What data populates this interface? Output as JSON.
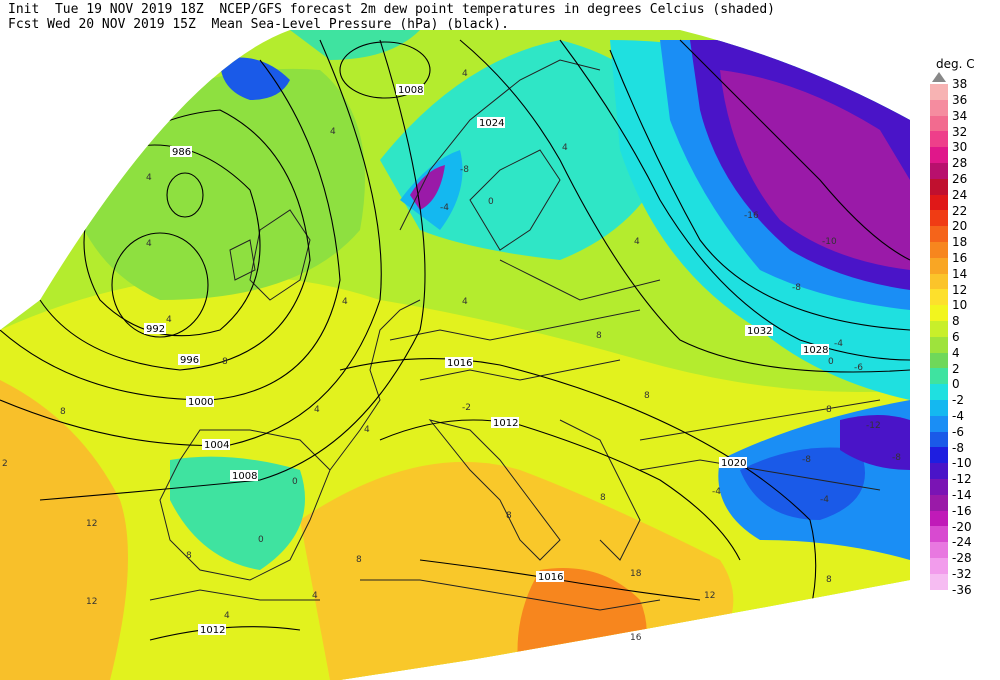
{
  "header": {
    "line1": "Init  Tue 19 NOV 2019 18Z  NCEP/GFS forecast 2m dew point temperatures in degrees Celcius (shaded)",
    "line2": "Fcst Wed 20 NOV 2019 15Z  Mean Sea-Level Pressure (hPa) (black)."
  },
  "legend": {
    "title": "deg. C",
    "top_label": "38",
    "levels": [
      {
        "label": "36",
        "color": "#f7b3b3"
      },
      {
        "label": "34",
        "color": "#f58c9f"
      },
      {
        "label": "32",
        "color": "#f26b8f"
      },
      {
        "label": "30",
        "color": "#ee3f8a"
      },
      {
        "label": "28",
        "color": "#e0178a"
      },
      {
        "label": "26",
        "color": "#b8106d"
      },
      {
        "label": "24",
        "color": "#c0102f"
      },
      {
        "label": "22",
        "color": "#e01818"
      },
      {
        "label": "20",
        "color": "#f03c14"
      },
      {
        "label": "18",
        "color": "#f5641a"
      },
      {
        "label": "16",
        "color": "#f7861e"
      },
      {
        "label": "14",
        "color": "#f9a624"
      },
      {
        "label": "12",
        "color": "#fbc42a"
      },
      {
        "label": "10",
        "color": "#fde02c"
      },
      {
        "label": "8",
        "color": "#f2f51e"
      },
      {
        "label": "6",
        "color": "#c8ef2a"
      },
      {
        "label": "4",
        "color": "#9ee33c"
      },
      {
        "label": "2",
        "color": "#6fd85a"
      },
      {
        "label": "0",
        "color": "#3fe3a0"
      },
      {
        "label": "-2",
        "color": "#1fe0e0"
      },
      {
        "label": "-4",
        "color": "#14b8f0"
      },
      {
        "label": "-6",
        "color": "#1a8ef5"
      },
      {
        "label": "-8",
        "color": "#1a5ae8"
      },
      {
        "label": "-10",
        "color": "#1e1ee0"
      },
      {
        "label": "-12",
        "color": "#4a14c8"
      },
      {
        "label": "-14",
        "color": "#7a14b4"
      },
      {
        "label": "-16",
        "color": "#9a1aa8"
      },
      {
        "label": "-20",
        "color": "#c01ab8"
      },
      {
        "label": "-24",
        "color": "#d84ad0"
      },
      {
        "label": "-28",
        "color": "#e878e0"
      },
      {
        "label": "-32",
        "color": "#f29cec"
      },
      {
        "label": "-36",
        "color": "#f6bcf2"
      }
    ]
  },
  "isobar_labels": [
    "1008",
    "1024",
    "986",
    "992",
    "996",
    "1000",
    "1004",
    "1008",
    "1016",
    "1012",
    "1032",
    "1028",
    "1020",
    "1016",
    "1012"
  ],
  "contour_labels": [
    "4",
    "4",
    "4",
    "4",
    "4",
    "4",
    "4",
    "4",
    "-8",
    "-4",
    "0",
    "4",
    "-16",
    "-10",
    "-8",
    "-4",
    "-6",
    "-8",
    "-12",
    "-4",
    "-8",
    "-4",
    "-2",
    "8",
    "8",
    "8",
    "8",
    "12",
    "12",
    "8",
    "2",
    "16",
    "18",
    "8",
    "8",
    "4",
    "0",
    "0",
    "4",
    "8",
    "8",
    "4",
    "12",
    "4",
    "0",
    "8"
  ]
}
